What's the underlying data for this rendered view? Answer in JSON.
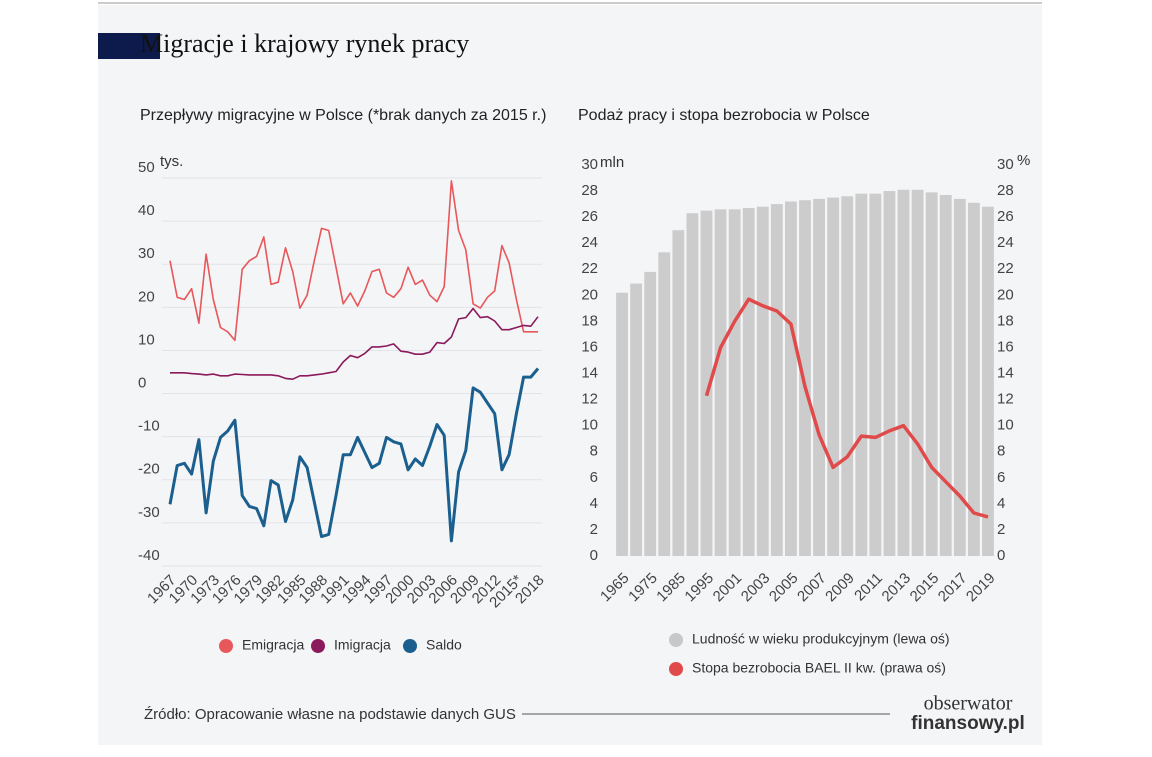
{
  "header": {
    "title": "Migracje i krajowy rynek pracy"
  },
  "source": "Źródło: Opracowanie własne na podstawie danych GUS",
  "logo": {
    "line1": "obserwator",
    "line2": "finansowy.pl"
  },
  "chart_data": [
    {
      "type": "line",
      "title": "Przepływy migracyjne w Polsce (*brak danych za 2015 r.)",
      "y_unit": "tys.",
      "categories": [
        "1967",
        null,
        null,
        "1970",
        null,
        null,
        "1973",
        null,
        null,
        "1976",
        null,
        null,
        "1979",
        null,
        null,
        "1982",
        null,
        null,
        "1985",
        null,
        null,
        "1988",
        null,
        null,
        "1991",
        null,
        null,
        "1994",
        null,
        null,
        "1997",
        null,
        null,
        "2000",
        null,
        null,
        "2003",
        null,
        null,
        "2006",
        null,
        null,
        "2009",
        null,
        null,
        "2012",
        null,
        null,
        "2015*",
        null,
        null,
        "2018"
      ],
      "series": [
        {
          "name": "Emigracja",
          "color": "#e8575a",
          "values": [
            28.5,
            20,
            19.5,
            22,
            14,
            30,
            19.5,
            13,
            12,
            10,
            26.5,
            28.5,
            29.5,
            34,
            23,
            23.5,
            31.5,
            26,
            17.5,
            20.5,
            28.5,
            36,
            35.5,
            27,
            18.5,
            21,
            18,
            21.5,
            26,
            26.5,
            21,
            20,
            22,
            27,
            23,
            24,
            20.5,
            19,
            22.5,
            47,
            35.5,
            31,
            18.5,
            17.5,
            20,
            21.5,
            32,
            28,
            19.5,
            12,
            12,
            12
          ]
        },
        {
          "name": "Imigracja",
          "color": "#8a1a5c",
          "values": [
            2.5,
            2.5,
            2.5,
            2.3,
            2.2,
            2,
            2.2,
            1.8,
            1.8,
            2.2,
            2.1,
            2,
            2,
            2,
            2,
            1.8,
            1.2,
            1,
            1.8,
            1.8,
            2,
            2.2,
            2.5,
            2.8,
            5,
            6.5,
            6,
            7,
            8.5,
            8.5,
            8.7,
            9.2,
            7.5,
            7.3,
            6.8,
            6.8,
            7.3,
            9.5,
            9.3,
            10.8,
            15,
            15.3,
            17.4,
            15.3,
            15.5,
            14.5,
            12.5,
            12.5,
            13,
            13.5,
            13.3,
            15.5
          ]
        },
        {
          "name": "Saldo",
          "color": "#1b5f8e",
          "values": [
            -28,
            -19,
            -18.5,
            -21,
            -13,
            -30,
            -18,
            -12.5,
            -11,
            -8.5,
            -26,
            -28.5,
            -29,
            -33,
            -22.5,
            -23.5,
            -32,
            -27,
            -17,
            -19.5,
            -27.5,
            -35.5,
            -35,
            -26,
            -16.5,
            -16.5,
            -12.5,
            -16,
            -19.5,
            -18.5,
            -12.5,
            -13.5,
            -14,
            -20,
            -17.5,
            -19,
            -14.5,
            -9.5,
            -12,
            -36.5,
            -20.5,
            -15.5,
            -1,
            -2,
            -4.5,
            -7,
            -20,
            -16.5,
            -7,
            1.5,
            1.5,
            3.5
          ]
        }
      ],
      "ylim": [
        -40,
        50
      ],
      "yticks": [
        -40,
        -30,
        -20,
        -10,
        0,
        10,
        20,
        30,
        40,
        50
      ],
      "grid": true
    },
    {
      "type": "combo",
      "title": "Podaż pracy i stopa bezrobocia w Polsce",
      "y_unit": "mln",
      "y2_unit": "%",
      "categories": [
        "1965",
        null,
        "1975",
        null,
        "1985",
        null,
        "1995",
        null,
        "2001",
        null,
        "2003",
        null,
        "2005",
        null,
        "2007",
        null,
        "2009",
        null,
        "2011",
        null,
        "2013",
        null,
        "2015",
        null,
        "2017",
        null,
        "2019"
      ],
      "series": [
        {
          "name": "Ludność w wieku produkcyjnym (lewa oś)",
          "type": "bar",
          "color": "#cccccc",
          "values": [
            20.2,
            20.9,
            21.8,
            23.3,
            25,
            26.3,
            26.5,
            26.6,
            26.6,
            26.7,
            26.8,
            27,
            27.2,
            27.3,
            27.4,
            27.5,
            27.6,
            27.8,
            27.8,
            28,
            28.1,
            28.1,
            27.9,
            27.7,
            27.4,
            27.1,
            26.8
          ]
        },
        {
          "name": "Stopa bezrobocia BAEL II kw. (prawa oś)",
          "type": "line",
          "axis": "y2",
          "color": "#e04a4a",
          "values": [
            null,
            null,
            null,
            null,
            null,
            null,
            12.3,
            16,
            18,
            19.7,
            19.2,
            18.8,
            17.8,
            13,
            9.3,
            6.8,
            7.6,
            9.2,
            9.1,
            9.6,
            10,
            8.6,
            6.8,
            5.7,
            4.6,
            3.3,
            3.0
          ]
        }
      ],
      "ylim": [
        0,
        30
      ],
      "yticks": [
        0,
        2,
        4,
        6,
        8,
        10,
        12,
        14,
        16,
        18,
        20,
        22,
        24,
        26,
        28,
        30
      ],
      "y2lim": [
        0,
        30
      ],
      "y2ticks": [
        0,
        2,
        4,
        6,
        8,
        10,
        12,
        14,
        16,
        18,
        20,
        22,
        24,
        26,
        28,
        30
      ],
      "grid": false
    }
  ]
}
